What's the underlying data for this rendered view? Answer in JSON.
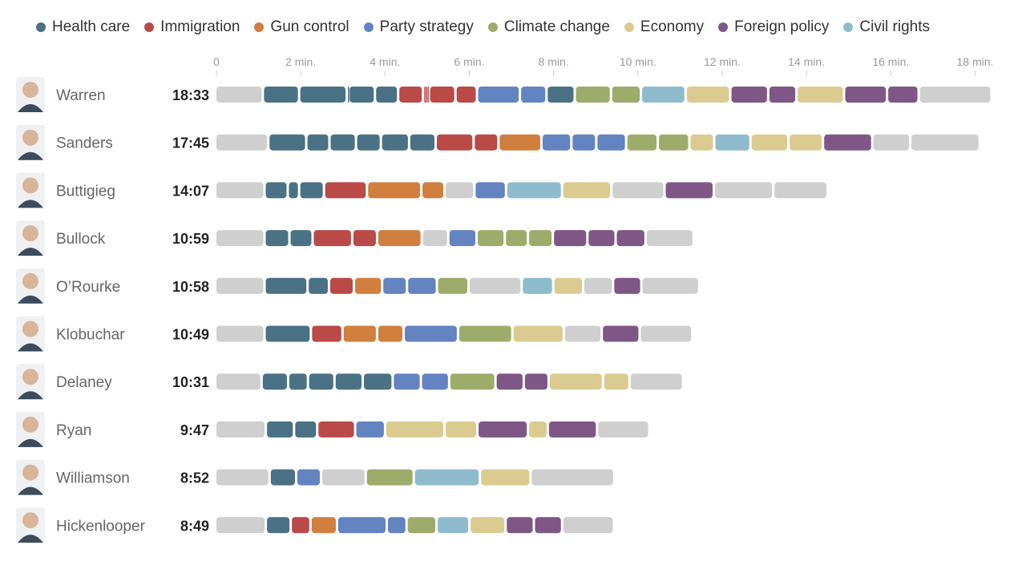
{
  "chart_data": {
    "type": "bar",
    "xlabel": "",
    "ylabel": "",
    "xlim": [
      0,
      18.6
    ],
    "x_ticks": [
      {
        "value": 0,
        "label": "0"
      },
      {
        "value": 2,
        "label": "2 min."
      },
      {
        "value": 4,
        "label": "4 min."
      },
      {
        "value": 6,
        "label": "6 min."
      },
      {
        "value": 8,
        "label": "8 min."
      },
      {
        "value": 10,
        "label": "10 min."
      },
      {
        "value": 12,
        "label": "12 min."
      },
      {
        "value": 14,
        "label": "14 min."
      },
      {
        "value": 16,
        "label": "16 min."
      },
      {
        "value": 18,
        "label": "18 min."
      }
    ],
    "legend_position": "top",
    "topics": [
      {
        "key": "health",
        "label": "Health care",
        "color": "#4a7184"
      },
      {
        "key": "immigration",
        "label": "Immigration",
        "color": "#b94a48"
      },
      {
        "key": "gun",
        "label": "Gun control",
        "color": "#d17f3e"
      },
      {
        "key": "party",
        "label": "Party strategy",
        "color": "#6383c1"
      },
      {
        "key": "climate",
        "label": "Climate change",
        "color": "#9eac6b"
      },
      {
        "key": "economy",
        "label": "Economy",
        "color": "#dccb91"
      },
      {
        "key": "foreign",
        "label": "Foreign policy",
        "color": "#7e5787"
      },
      {
        "key": "civil",
        "label": "Civil rights",
        "color": "#8fbccd"
      },
      {
        "key": "other",
        "label": "",
        "color": "#cfcfcf"
      }
    ],
    "candidates": [
      {
        "name": "Warren",
        "time": "18:33",
        "avatar_icon": "warren-photo-icon",
        "segments": [
          [
            "other",
            1.13
          ],
          [
            "health",
            0.86
          ],
          [
            "health",
            1.13
          ],
          [
            "health",
            0.04
          ],
          [
            "health",
            0.63
          ],
          [
            "health",
            0.55
          ],
          [
            "immigration",
            0.59
          ],
          [
            "immigration",
            0.04
          ],
          [
            "immigration",
            0.04
          ],
          [
            "immigration",
            0.06
          ],
          [
            "immigration",
            0.63
          ],
          [
            "immigration",
            0.51
          ],
          [
            "party",
            1.02
          ],
          [
            "party",
            0.63
          ],
          [
            "health",
            0.67
          ],
          [
            "climate",
            0.86
          ],
          [
            "climate",
            0.71
          ],
          [
            "civil",
            1.06
          ],
          [
            "economy",
            1.06
          ],
          [
            "foreign",
            0.9
          ],
          [
            "foreign",
            0.67
          ],
          [
            "economy",
            1.13
          ],
          [
            "foreign",
            1.02
          ],
          [
            "foreign",
            0.75
          ],
          [
            "other",
            1.73
          ]
        ]
      },
      {
        "name": "Sanders",
        "time": "17:45",
        "avatar_icon": "sanders-photo-icon",
        "segments": [
          [
            "other",
            1.26
          ],
          [
            "health",
            0.9
          ],
          [
            "health",
            0.55
          ],
          [
            "health",
            0.63
          ],
          [
            "health",
            0.59
          ],
          [
            "health",
            0.67
          ],
          [
            "health",
            0.63
          ],
          [
            "immigration",
            0.9
          ],
          [
            "immigration",
            0.59
          ],
          [
            "gun",
            1.02
          ],
          [
            "party",
            0.71
          ],
          [
            "party",
            0.59
          ],
          [
            "party",
            0.71
          ],
          [
            "climate",
            0.75
          ],
          [
            "climate",
            0.75
          ],
          [
            "economy",
            0.59
          ],
          [
            "civil",
            0.86
          ],
          [
            "economy",
            0.9
          ],
          [
            "economy",
            0.82
          ],
          [
            "foreign",
            1.17
          ],
          [
            "other",
            0.9
          ],
          [
            "other",
            1.65
          ]
        ]
      },
      {
        "name": "Buttigieg",
        "time": "14:07",
        "avatar_icon": "buttigieg-photo-icon",
        "segments": [
          [
            "other",
            1.17
          ],
          [
            "health",
            0.55
          ],
          [
            "health",
            0.27
          ],
          [
            "health",
            0.59
          ],
          [
            "immigration",
            1.02
          ],
          [
            "gun",
            1.29
          ],
          [
            "gun",
            0.55
          ],
          [
            "other",
            0.71
          ],
          [
            "party",
            0.75
          ],
          [
            "civil",
            1.33
          ],
          [
            "economy",
            1.17
          ],
          [
            "other",
            1.26
          ],
          [
            "foreign",
            1.17
          ],
          [
            "other",
            1.41
          ],
          [
            "other",
            1.29
          ]
        ]
      },
      {
        "name": "Bullock",
        "time": "10:59",
        "avatar_icon": "bullock-photo-icon",
        "segments": [
          [
            "other",
            1.17
          ],
          [
            "health",
            0.59
          ],
          [
            "health",
            0.55
          ],
          [
            "immigration",
            0.94
          ],
          [
            "immigration",
            0.59
          ],
          [
            "gun",
            1.06
          ],
          [
            "other",
            0.63
          ],
          [
            "party",
            0.67
          ],
          [
            "climate",
            0.67
          ],
          [
            "climate",
            0.55
          ],
          [
            "climate",
            0.59
          ],
          [
            "foreign",
            0.82
          ],
          [
            "foreign",
            0.67
          ],
          [
            "foreign",
            0.71
          ],
          [
            "other",
            1.14
          ]
        ]
      },
      {
        "name": "O’Rourke",
        "time": "10:58",
        "avatar_icon": "orourke-photo-icon",
        "segments": [
          [
            "other",
            1.17
          ],
          [
            "health",
            1.02
          ],
          [
            "health",
            0.51
          ],
          [
            "immigration",
            0.59
          ],
          [
            "gun",
            0.67
          ],
          [
            "party",
            0.59
          ],
          [
            "party",
            0.71
          ],
          [
            "climate",
            0.75
          ],
          [
            "other",
            1.26
          ],
          [
            "civil",
            0.75
          ],
          [
            "economy",
            0.71
          ],
          [
            "other",
            0.71
          ],
          [
            "foreign",
            0.67
          ],
          [
            "other",
            1.37
          ]
        ]
      },
      {
        "name": "Klobuchar",
        "time": "10:49",
        "avatar_icon": "klobuchar-photo-icon",
        "segments": [
          [
            "other",
            1.17
          ],
          [
            "health",
            1.1
          ],
          [
            "immigration",
            0.75
          ],
          [
            "gun",
            0.82
          ],
          [
            "gun",
            0.63
          ],
          [
            "party",
            1.29
          ],
          [
            "climate",
            1.29
          ],
          [
            "economy",
            1.22
          ],
          [
            "other",
            0.9
          ],
          [
            "foreign",
            0.9
          ],
          [
            "other",
            1.25
          ]
        ]
      },
      {
        "name": "Delaney",
        "time": "10:31",
        "avatar_icon": "delaney-photo-icon",
        "segments": [
          [
            "other",
            1.1
          ],
          [
            "health",
            0.63
          ],
          [
            "health",
            0.47
          ],
          [
            "health",
            0.63
          ],
          [
            "health",
            0.67
          ],
          [
            "health",
            0.71
          ],
          [
            "party",
            0.67
          ],
          [
            "party",
            0.67
          ],
          [
            "climate",
            1.1
          ],
          [
            "foreign",
            0.67
          ],
          [
            "foreign",
            0.59
          ],
          [
            "economy",
            1.29
          ],
          [
            "economy",
            0.63
          ],
          [
            "other",
            1.27
          ]
        ]
      },
      {
        "name": "Ryan",
        "time": "9:47",
        "avatar_icon": "ryan-photo-icon",
        "segments": [
          [
            "other",
            1.2
          ],
          [
            "health",
            0.67
          ],
          [
            "health",
            0.55
          ],
          [
            "immigration",
            0.9
          ],
          [
            "party",
            0.71
          ],
          [
            "economy",
            1.41
          ],
          [
            "economy",
            0.78
          ],
          [
            "foreign",
            1.2
          ],
          [
            "economy",
            0.47
          ],
          [
            "foreign",
            1.17
          ],
          [
            "other",
            1.24
          ]
        ]
      },
      {
        "name": "Williamson",
        "time": "8:52",
        "avatar_icon": "williamson-photo-icon",
        "segments": [
          [
            "other",
            1.29
          ],
          [
            "health",
            0.63
          ],
          [
            "party",
            0.59
          ],
          [
            "other",
            1.06
          ],
          [
            "climate",
            1.14
          ],
          [
            "civil",
            1.57
          ],
          [
            "economy",
            1.2
          ],
          [
            "other",
            1.99
          ]
        ]
      },
      {
        "name": "Hickenlooper",
        "time": "8:49",
        "avatar_icon": "hickenlooper-photo-icon",
        "segments": [
          [
            "other",
            1.2
          ],
          [
            "health",
            0.59
          ],
          [
            "immigration",
            0.47
          ],
          [
            "gun",
            0.63
          ],
          [
            "party",
            1.18
          ],
          [
            "party",
            0.47
          ],
          [
            "climate",
            0.71
          ],
          [
            "civil",
            0.78
          ],
          [
            "economy",
            0.86
          ],
          [
            "foreign",
            0.67
          ],
          [
            "foreign",
            0.67
          ],
          [
            "other",
            1.23
          ]
        ]
      }
    ]
  }
}
